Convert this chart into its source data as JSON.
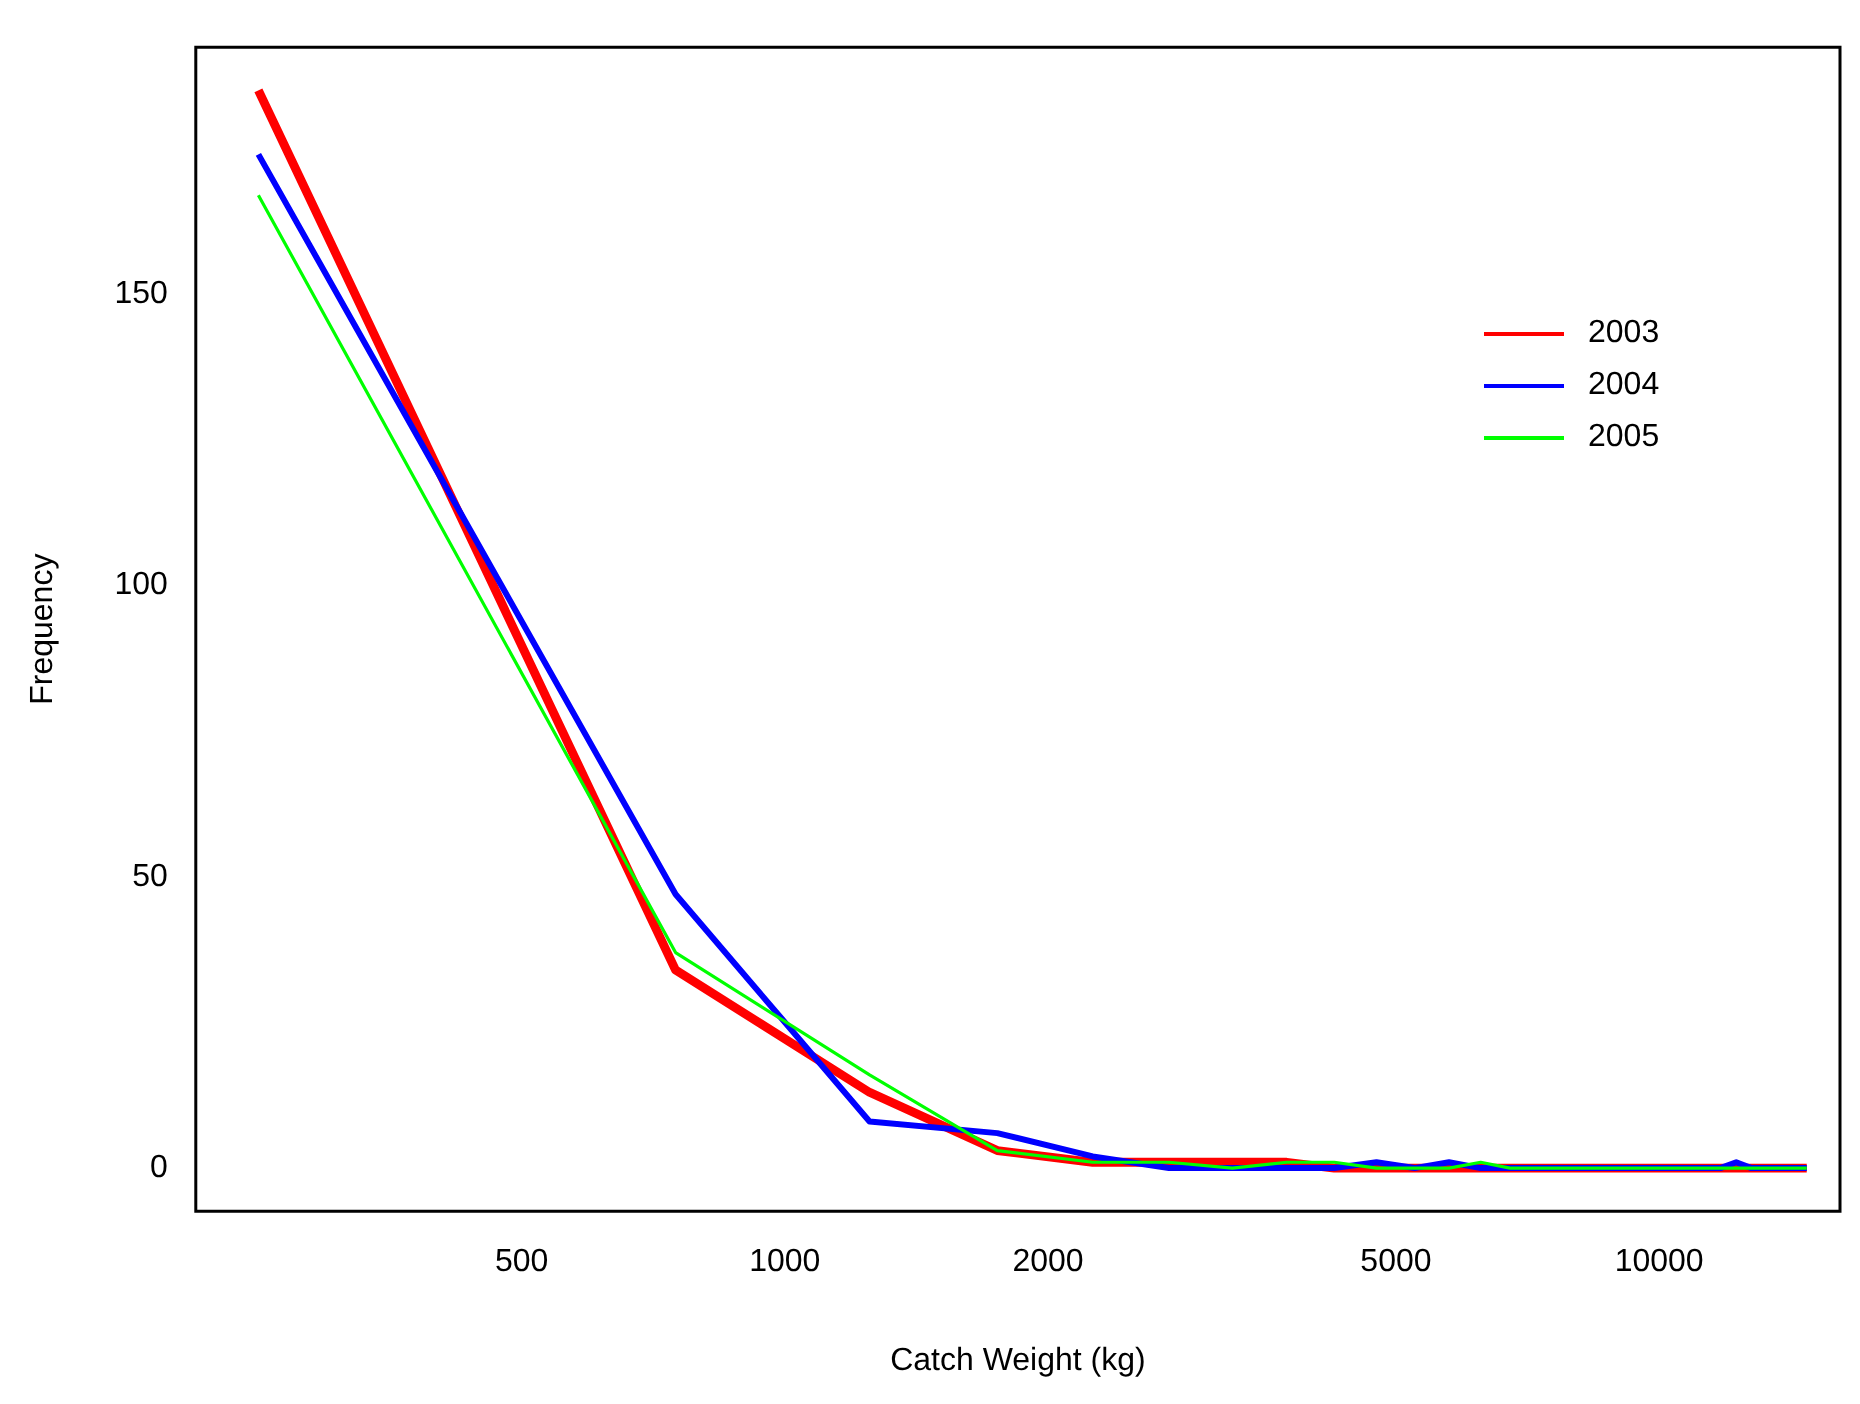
{
  "chart_data": {
    "type": "line",
    "xlabel": "Catch Weight (kg)",
    "ylabel": "Frequency",
    "x": [
      250,
      750,
      1250,
      1750,
      2250,
      2750,
      3250,
      3750,
      4250,
      4750,
      5250,
      5750,
      6250,
      6750,
      7250,
      7750,
      8250,
      8750,
      9250,
      9750,
      10250,
      10750,
      11250,
      11750,
      12250,
      12750,
      13250,
      13750,
      14250,
      14750
    ],
    "series": [
      {
        "name": "2003",
        "color": "#ff0000",
        "values": [
          185,
          34,
          13,
          3,
          1,
          1,
          1,
          1,
          0,
          0,
          0,
          0,
          0,
          0,
          0,
          0,
          0,
          0,
          0,
          0,
          0,
          0,
          0,
          0,
          0,
          0,
          0,
          0,
          0,
          0
        ]
      },
      {
        "name": "2004",
        "color": "#0000ff",
        "values": [
          174,
          47,
          8,
          6,
          2,
          0,
          0,
          0,
          0,
          1,
          0,
          1,
          0,
          0,
          0,
          0,
          0,
          0,
          0,
          0,
          0,
          0,
          0,
          0,
          1,
          0,
          0,
          0,
          0,
          0
        ]
      },
      {
        "name": "2005",
        "color": "#00ff00",
        "values": [
          167,
          37,
          16,
          3,
          1,
          1,
          0,
          1,
          1,
          0,
          0,
          0,
          1,
          0,
          0,
          0,
          0,
          0,
          0,
          0,
          0,
          0,
          0,
          0,
          0,
          0,
          0,
          0,
          0,
          0
        ]
      }
    ],
    "log": "x",
    "xlim": [
      212,
      16100
    ],
    "xticks": [
      500,
      1000,
      2000,
      5000,
      10000
    ],
    "ylim": [
      -7.4,
      192.4
    ],
    "yticks": [
      0,
      50,
      100,
      150
    ],
    "grid": false,
    "legend": "top right",
    "marker": "none",
    "line_style": "solid"
  }
}
